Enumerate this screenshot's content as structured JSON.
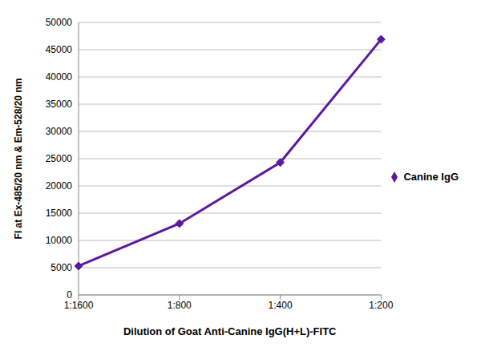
{
  "chart_data": {
    "type": "line",
    "x_label": "Dilution of Goat Anti-Canine IgG(H+L)-FITC",
    "y_label": "FI at Ex-485/20 nm & Em-528/20 nm",
    "categories": [
      "1:1600",
      "1:800",
      "1:400",
      "1:200"
    ],
    "series": [
      {
        "name": "Canine IgG",
        "color": "#5b1a9e",
        "values": [
          5300,
          13100,
          24300,
          46900
        ],
        "marker": "diamond"
      }
    ],
    "ylim": [
      0,
      50000
    ],
    "yticks": [
      0,
      5000,
      10000,
      15000,
      20000,
      25000,
      30000,
      35000,
      40000,
      45000,
      50000
    ],
    "grid": true,
    "legend": "right"
  }
}
